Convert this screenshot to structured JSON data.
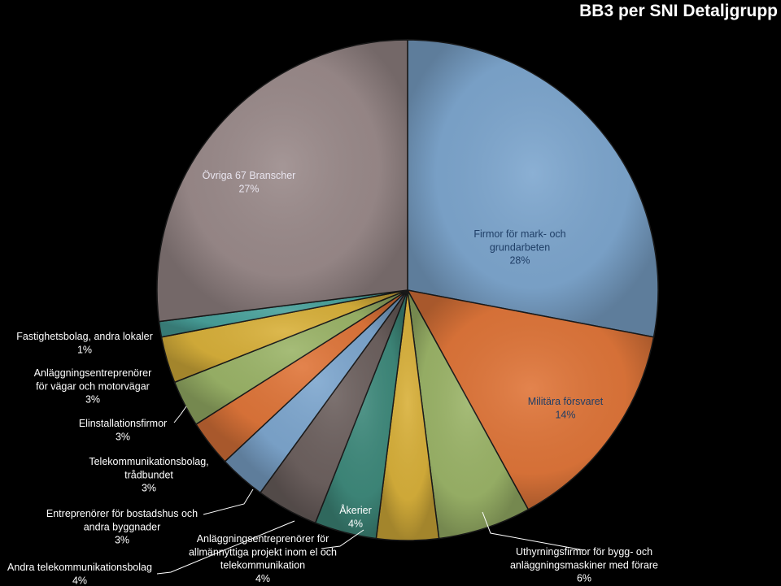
{
  "chart_data": {
    "type": "pie",
    "title": "BB3 per SNI Detaljgrupp",
    "slices": [
      {
        "lines": [
          "Firmor för mark- och",
          "grundarbeten",
          "28%"
        ],
        "value": 28,
        "color": "#7ea7cf"
      },
      {
        "lines": [
          "Militära försvaret",
          "14%"
        ],
        "value": 14,
        "color": "#e0763a"
      },
      {
        "lines": [
          "Uthyrningsfirmor för bygg- och",
          "anläggningsmaskiner med förare",
          "6%"
        ],
        "value": 6,
        "color": "#9cb569"
      },
      {
        "lines": [
          "Anläggningsentreprenörer för",
          "allmännyttiga projekt inom el och",
          "telekommunikation",
          "4%"
        ],
        "value": 4,
        "color": "#d9b13b"
      },
      {
        "lines": [
          "Åkerier",
          "4%"
        ],
        "value": 4,
        "color": "#3f8a7c"
      },
      {
        "lines": [
          "Andra telekommunikationsbolag",
          "4%"
        ],
        "value": 4,
        "color": "#6e6260"
      },
      {
        "lines": [
          "Entreprenörer för bostadshus och",
          "andra byggnader",
          "3%"
        ],
        "value": 3,
        "color": "#7ea7cf"
      },
      {
        "lines": [
          "Telekommunikationsbolag,",
          "trådbundet",
          "3%"
        ],
        "value": 3,
        "color": "#e0763a"
      },
      {
        "lines": [
          "Elinstallationsfirmor",
          "3%"
        ],
        "value": 3,
        "color": "#9cb569"
      },
      {
        "lines": [
          "Anläggningsentreprenörer",
          "för vägar och motorvägar",
          "3%"
        ],
        "value": 3,
        "color": "#d9b13b"
      },
      {
        "lines": [
          "Fastighetsbolag, andra lokaler",
          "1%"
        ],
        "value": 1,
        "color": "#49a29c"
      },
      {
        "lines": [
          "Övriga 67 Branscher",
          "27%"
        ],
        "value": 27,
        "color": "#9b8b8b"
      }
    ]
  }
}
